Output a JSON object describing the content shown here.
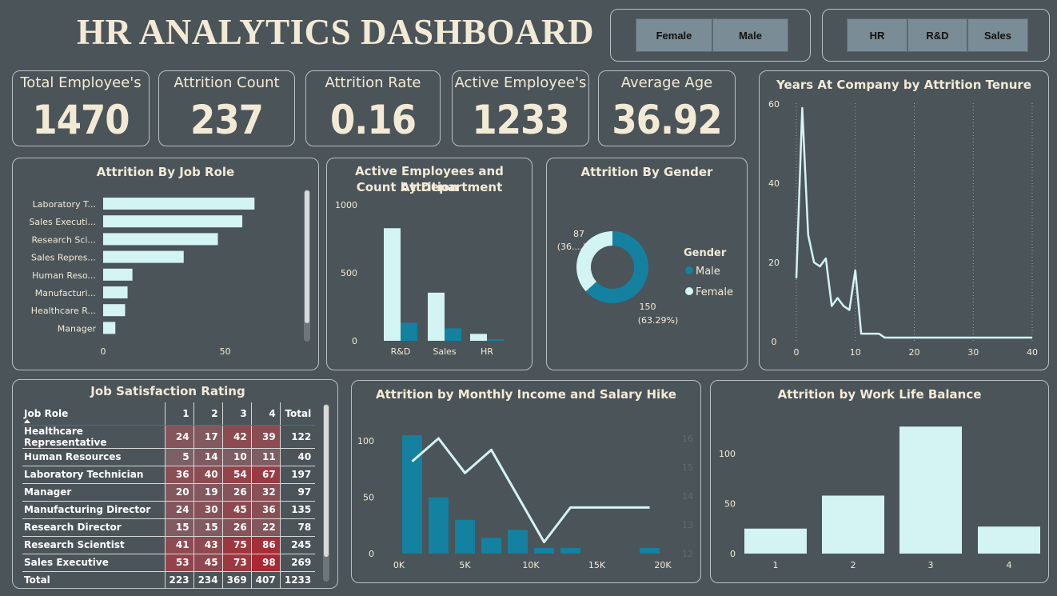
{
  "header": {
    "title": "HR ANALYTICS DASHBOARD"
  },
  "slicers": {
    "gender": [
      "Female",
      "Male"
    ],
    "department": [
      "HR",
      "R&D",
      "Sales"
    ]
  },
  "kpis": [
    {
      "label": "Total Employee's",
      "value": "1470"
    },
    {
      "label": "Attrition Count",
      "value": "237"
    },
    {
      "label": "Attrition Rate",
      "value": "0.16"
    },
    {
      "label": "Active Employee's",
      "value": "1233"
    },
    {
      "label": "Average Age",
      "value": "36.92"
    }
  ],
  "colors": {
    "light": "#d4f3f3",
    "teal": "#13819f",
    "bg": "#4b5459",
    "cream": "#f3ead6"
  },
  "job_role_chart": {
    "title": "Attrition By Job Role",
    "chart_data": {
      "type": "bar",
      "orientation": "horizontal",
      "categories": [
        "Laboratory T...",
        "Sales Executi...",
        "Research Sci...",
        "Sales Repres...",
        "Human Reso...",
        "Manufacturi...",
        "Healthcare R...",
        "Manager"
      ],
      "values": [
        62,
        57,
        47,
        33,
        12,
        10,
        9,
        5
      ],
      "xticks": [
        "0",
        "50"
      ],
      "xlim": [
        0,
        75
      ]
    }
  },
  "department_chart": {
    "title_line1": "Active Employees and Attrition",
    "title_line2": "Count by Department",
    "chart_data": {
      "type": "bar",
      "categories": [
        "R&D",
        "Sales",
        "HR"
      ],
      "series": [
        {
          "name": "Active Employees",
          "values": [
            828,
            354,
            51
          ],
          "color": "#d4f3f3"
        },
        {
          "name": "Attrition Count",
          "values": [
            133,
            92,
            12
          ],
          "color": "#13819f"
        }
      ],
      "yticks": [
        "0",
        "500",
        "1000"
      ],
      "ylim": [
        0,
        1000
      ]
    }
  },
  "gender_chart": {
    "title": "Attrition By Gender",
    "legend_title": "Gender",
    "legend": [
      "Male",
      "Female"
    ],
    "female_label_1": "87",
    "female_label_2": "(36....)",
    "male_label_1": "150",
    "male_label_2": "(63.29%)",
    "chart_data": {
      "type": "pie",
      "variant": "donut",
      "labels": [
        "Male",
        "Female"
      ],
      "values": [
        150,
        87
      ],
      "colors": [
        "#13819f",
        "#d4f3f3"
      ]
    }
  },
  "tenure_chart": {
    "title": "Years At Company by Attrition Tenure",
    "chart_data": {
      "type": "line",
      "x": [
        0,
        1,
        2,
        3,
        4,
        5,
        6,
        7,
        8,
        9,
        10,
        11,
        12,
        13,
        14,
        15,
        16,
        17,
        18,
        19,
        20,
        21,
        22,
        23,
        24,
        25,
        26,
        27,
        28,
        29,
        30,
        31,
        32,
        33,
        34,
        35,
        36,
        37,
        38,
        39,
        40
      ],
      "y": [
        16,
        59,
        27,
        20,
        19,
        21,
        9,
        11,
        9,
        8,
        18,
        2,
        2,
        2,
        2,
        1,
        1,
        1,
        1,
        1,
        1,
        1,
        1,
        1,
        1,
        1,
        1,
        1,
        1,
        1,
        1,
        1,
        1,
        1,
        1,
        1,
        1,
        1,
        1,
        1,
        1
      ],
      "xticks": [
        "0",
        "10",
        "20",
        "30",
        "40"
      ],
      "yticks": [
        "0",
        "20",
        "40",
        "60"
      ],
      "xlim": [
        0,
        40
      ],
      "ylim": [
        0,
        60
      ],
      "grid": "vertical dotted"
    }
  },
  "satisfaction_table": {
    "title": "Job Satisfaction Rating",
    "columns": [
      "Job Role",
      "1",
      "2",
      "3",
      "4",
      "Total"
    ],
    "rows": [
      {
        "role": "Healthcare Representative",
        "v": [
          "24",
          "17",
          "42",
          "39"
        ],
        "total": "122"
      },
      {
        "role": "Human Resources",
        "v": [
          "5",
          "14",
          "10",
          "11"
        ],
        "total": "40"
      },
      {
        "role": "Laboratory Technician",
        "v": [
          "36",
          "40",
          "54",
          "67"
        ],
        "total": "197"
      },
      {
        "role": "Manager",
        "v": [
          "20",
          "19",
          "26",
          "32"
        ],
        "total": "97"
      },
      {
        "role": "Manufacturing Director",
        "v": [
          "24",
          "30",
          "45",
          "36"
        ],
        "total": "135"
      },
      {
        "role": "Research Director",
        "v": [
          "15",
          "15",
          "26",
          "22"
        ],
        "total": "78"
      },
      {
        "role": "Research Scientist",
        "v": [
          "41",
          "43",
          "75",
          "86"
        ],
        "total": "245"
      },
      {
        "role": "Sales Executive",
        "v": [
          "53",
          "45",
          "73",
          "98"
        ],
        "total": "269"
      }
    ],
    "total_row": {
      "role": "Total",
      "v": [
        "223",
        "234",
        "369",
        "407"
      ],
      "total": "1233"
    }
  },
  "income_chart": {
    "title": "Attrition by Monthly Income and Salary Hike",
    "chart_data": {
      "type": "bar",
      "x": [
        1000,
        3000,
        5000,
        7000,
        9000,
        11000,
        13000,
        19000
      ],
      "values": [
        105,
        50,
        30,
        14,
        21,
        5,
        5,
        5
      ],
      "line_x": [
        1000,
        3000,
        5000,
        7000,
        11000,
        13000,
        19000
      ],
      "line_y": [
        15.2,
        16,
        14.8,
        15.6,
        12.4,
        13.6,
        13.6
      ],
      "xticks": [
        "0K",
        "5K",
        "10K",
        "15K",
        "20K"
      ],
      "yticks": [
        "0",
        "50",
        "100"
      ],
      "y2ticks": [
        "12",
        "13",
        "14",
        "15",
        "16"
      ],
      "xlim": [
        0,
        20000
      ],
      "ylim": [
        0,
        115
      ],
      "y2lim": [
        12,
        16.5
      ]
    }
  },
  "wlb_chart": {
    "title": "Attrition by Work Life Balance",
    "chart_data": {
      "type": "bar",
      "categories": [
        "1",
        "2",
        "3",
        "4"
      ],
      "values": [
        25,
        58,
        127,
        27
      ],
      "yticks": [
        "0",
        "50",
        "100"
      ],
      "ylim": [
        0,
        140
      ]
    }
  }
}
